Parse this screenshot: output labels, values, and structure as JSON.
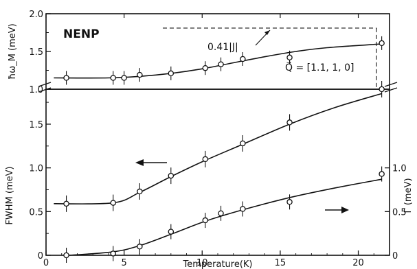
{
  "chart_data": [
    {
      "panel": "upper",
      "type": "scatter",
      "label": "NENP",
      "ylabel": "ħω_M (meV)",
      "xlim": [
        0,
        22
      ],
      "ylim": [
        1.0,
        2.0
      ],
      "yticks": [
        "1.0",
        "1.5",
        "2.0"
      ],
      "annotations": {
        "reference_level": "0.41|J|",
        "reference_value": 1.81,
        "q_vector": "Q⃗ = [1.1, 1, 0]"
      },
      "series": [
        {
          "x": [
            1.3,
            4.3,
            5.0,
            6.0,
            8.0,
            10.2,
            11.2,
            12.6,
            15.6,
            21.5
          ],
          "y": [
            1.15,
            1.15,
            1.15,
            1.19,
            1.21,
            1.28,
            1.33,
            1.4,
            1.42,
            1.61
          ]
        }
      ]
    },
    {
      "panel": "lower",
      "type": "scatter",
      "xlabel": "Temperature(K)",
      "ylabel": "FWHM (meV)",
      "ylabel_right": "Γ (meV)",
      "xlim": [
        0,
        22
      ],
      "ylim": [
        0,
        1.9
      ],
      "xticks": [
        "0",
        "5",
        "10",
        "15",
        "20"
      ],
      "yticks_left": [
        "0",
        "0.5",
        "1.0",
        "1.5"
      ],
      "yticks_right": [
        "0",
        "0.5",
        "1.0"
      ],
      "series": [
        {
          "axis": "left",
          "x": [
            1.3,
            4.3,
            6.0,
            8.0,
            10.2,
            12.6,
            15.6,
            21.5
          ],
          "y": [
            0.59,
            0.6,
            0.73,
            0.91,
            1.1,
            1.28,
            1.52,
            1.9
          ]
        },
        {
          "axis": "left",
          "x": [
            1.3,
            4.3,
            6.0,
            8.0,
            10.2,
            11.2,
            12.6,
            15.6,
            21.5
          ],
          "y": [
            0.0,
            0.02,
            0.1,
            0.27,
            0.4,
            0.48,
            0.53,
            0.61,
            0.93
          ]
        }
      ]
    }
  ]
}
